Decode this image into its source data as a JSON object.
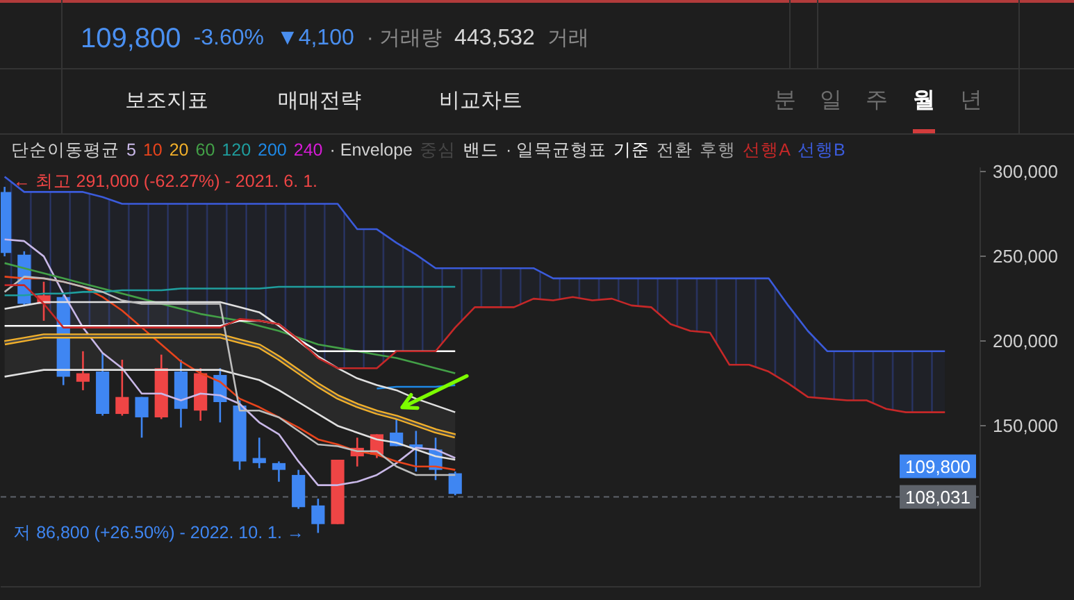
{
  "chart_data": {
    "type": "candlestick",
    "categories": [
      null,
      null,
      null,
      null,
      null,
      null,
      null,
      null,
      null,
      null,
      null,
      null,
      null,
      null,
      null,
      null,
      null,
      null,
      null,
      null,
      null,
      null,
      null,
      null,
      null,
      null,
      null,
      null,
      null,
      null,
      null,
      null,
      null,
      null,
      null,
      null,
      null,
      null,
      null,
      null,
      null,
      null,
      null,
      null,
      null,
      null,
      null,
      null,
      null
    ],
    "ohlc": [
      [
        288000,
        291000,
        250000,
        252000
      ],
      [
        251000,
        253000,
        221000,
        222000
      ],
      [
        222000,
        235000,
        212000,
        227000
      ],
      [
        226000,
        227000,
        174000,
        179000
      ],
      [
        176000,
        194000,
        171000,
        181000
      ],
      [
        182000,
        193000,
        156000,
        157000
      ],
      [
        157000,
        189000,
        156000,
        167000
      ],
      [
        167000,
        167000,
        143000,
        155000
      ],
      [
        155000,
        192000,
        154000,
        184000
      ],
      [
        182000,
        189000,
        149000,
        160000
      ],
      [
        159000,
        184000,
        153000,
        181000
      ],
      [
        180000,
        184000,
        152000,
        164000
      ],
      [
        162000,
        165000,
        124000,
        129000
      ],
      [
        131000,
        143000,
        125000,
        128000
      ],
      [
        128000,
        129000,
        117000,
        124000
      ],
      [
        121000,
        124000,
        101000,
        102000
      ],
      [
        103000,
        107000,
        86800,
        92000
      ],
      [
        92000,
        130000,
        92000,
        130000
      ],
      [
        132000,
        143000,
        126000,
        137000
      ],
      [
        133000,
        145000,
        131000,
        145000
      ],
      [
        146000,
        156000,
        138000,
        138000
      ],
      [
        139000,
        147000,
        123000,
        137000
      ],
      [
        136000,
        143000,
        118000,
        124000
      ],
      [
        122000,
        123000,
        109000,
        109800
      ],
      null,
      null,
      null,
      null,
      null,
      null,
      null,
      null,
      null,
      null,
      null,
      null,
      null,
      null,
      null,
      null,
      null,
      null,
      null,
      null,
      null,
      null,
      null,
      null,
      null
    ],
    "colors": [
      "#3f86f2",
      "#3f86f2",
      "#ef4545",
      "#3f86f2",
      "#ef4545",
      "#3f86f2",
      "#ef4545",
      "#3f86f2",
      "#ef4545",
      "#3f86f2",
      "#ef4545",
      "#3f86f2",
      "#3f86f2",
      "#3f86f2",
      "#3f86f2",
      "#3f86f2",
      "#3f86f2",
      "#ef4545",
      "#ef4545",
      "#ef4545",
      "#3f86f2",
      "#3f86f2",
      "#3f86f2",
      "#3f86f2",
      null,
      null,
      null,
      null,
      null,
      null,
      null,
      null,
      null,
      null,
      null,
      null,
      null,
      null,
      null,
      null,
      null,
      null,
      null,
      null,
      null,
      null,
      null,
      null,
      null
    ],
    "ylim": [
      55000,
      302500
    ],
    "yticks": [
      {
        "value": 150000,
        "label": "150,000"
      },
      {
        "value": 200000,
        "label": "200,000"
      },
      {
        "value": 250000,
        "label": "250,000"
      },
      {
        "value": 300000,
        "label": "300,000"
      }
    ],
    "tick_labels": "y",
    "series": [
      {
        "name": "5",
        "color": "#c9b8e8",
        "type": "line",
        "values": [
          260000,
          259000,
          250000,
          228000,
          208000,
          193000,
          184000,
          169000,
          169000,
          165000,
          169000,
          168000,
          163000,
          152000,
          145000,
          129000,
          115000,
          115000,
          117000,
          121000,
          128000,
          137000,
          136000,
          131000,
          null,
          null,
          null,
          null,
          null,
          null,
          null,
          null,
          null,
          null,
          null,
          null,
          null,
          null,
          null,
          null,
          null,
          null,
          null,
          null,
          null,
          null,
          null,
          null,
          null
        ]
      },
      {
        "name": "10",
        "color": "#e8441c",
        "type": "line",
        "values": [
          238000,
          237000,
          237000,
          235000,
          232000,
          226000,
          218000,
          208000,
          198000,
          188000,
          181000,
          176000,
          166000,
          161000,
          155000,
          149000,
          142000,
          139000,
          135000,
          133000,
          129000,
          126000,
          126000,
          124000,
          null,
          null,
          null,
          null,
          null,
          null,
          null,
          null,
          null,
          null,
          null,
          null,
          null,
          null,
          null,
          null,
          null,
          null,
          null,
          null,
          null,
          null,
          null,
          null,
          null
        ]
      },
      {
        "name": "20",
        "color": "#f2b02a",
        "type": "line",
        "values": [
          199000,
          201000,
          203000,
          203000,
          203000,
          203000,
          203000,
          203000,
          203000,
          203000,
          203000,
          203000,
          200000,
          197000,
          190000,
          182000,
          174000,
          167000,
          162000,
          158000,
          155000,
          151000,
          147000,
          144000,
          null,
          null,
          null,
          null,
          null,
          null,
          null,
          null,
          null,
          null,
          null,
          null,
          null,
          null,
          null,
          null,
          null,
          null,
          null,
          null,
          null,
          null,
          null,
          null,
          null
        ]
      },
      {
        "name": "60",
        "color": "#43a047",
        "type": "line",
        "values": [
          246000,
          243000,
          240000,
          237000,
          234000,
          231000,
          228000,
          225000,
          222000,
          219000,
          216000,
          214000,
          212000,
          209000,
          206000,
          202000,
          198000,
          196000,
          194000,
          192000,
          190000,
          187000,
          184000,
          181000,
          null,
          null,
          null,
          null,
          null,
          null,
          null,
          null,
          null,
          null,
          null,
          null,
          null,
          null,
          null,
          null,
          null,
          null,
          null,
          null,
          null,
          null,
          null,
          null,
          null
        ]
      },
      {
        "name": "120",
        "color": "#1f9e9e",
        "type": "line",
        "values": [
          227000,
          227000,
          228000,
          228000,
          229000,
          229000,
          230000,
          230000,
          230000,
          231000,
          231000,
          231000,
          231000,
          231000,
          232000,
          232000,
          232000,
          232000,
          232000,
          232000,
          232000,
          232000,
          232000,
          232000,
          null,
          null,
          null,
          null,
          null,
          null,
          null,
          null,
          null,
          null,
          null,
          null,
          null,
          null,
          null,
          null,
          null,
          null,
          null,
          null,
          null,
          null,
          null,
          null,
          null
        ]
      },
      {
        "name": "200",
        "color": "#1e88e5",
        "type": "line",
        "values": [
          null,
          null,
          null,
          null,
          null,
          null,
          null,
          null,
          null,
          null,
          null,
          null,
          null,
          null,
          null,
          null,
          null,
          null,
          null,
          172000,
          173000,
          173000,
          173000,
          174000,
          null,
          null,
          null,
          null,
          null,
          null,
          null,
          null,
          null,
          null,
          null,
          null,
          null,
          null,
          null,
          null,
          null,
          null,
          null,
          null,
          null,
          null,
          null,
          null,
          null
        ]
      },
      {
        "name": "240",
        "color": "#d81bd8",
        "type": "line",
        "values": [
          null,
          null,
          null,
          null,
          null,
          null,
          null,
          null,
          null,
          null,
          null,
          null,
          null,
          null,
          null,
          null,
          null,
          null,
          null,
          null,
          null,
          null,
          null,
          null,
          null,
          null,
          null,
          null,
          null,
          null,
          null,
          null,
          null,
          null,
          null,
          null,
          null,
          null,
          null,
          null,
          null,
          null,
          null,
          null,
          null,
          null,
          null,
          null,
          null
        ]
      },
      {
        "name": "중심",
        "color": "#474747",
        "type": "line",
        "values": [
          199000,
          201000,
          203000,
          203000,
          203000,
          203000,
          203000,
          203000,
          203000,
          203000,
          203000,
          203000,
          200000,
          197000,
          190000,
          182000,
          174000,
          167000,
          162000,
          158000,
          155000,
          151000,
          147000,
          144000,
          null,
          null,
          null,
          null,
          null,
          null,
          null,
          null,
          null,
          null,
          null,
          null,
          null,
          null,
          null,
          null,
          null,
          null,
          null,
          null,
          null,
          null,
          null,
          null,
          null
        ],
        "lower": [
          179000,
          181000,
          183000,
          183000,
          183000,
          183000,
          183000,
          183000,
          183000,
          183000,
          183000,
          183000,
          180000,
          177000,
          171000,
          164000,
          157000,
          150000,
          146000,
          142000,
          140000,
          136000,
          132000,
          130000,
          null,
          null,
          null,
          null,
          null,
          null,
          null,
          null,
          null,
          null,
          null,
          null,
          null,
          null,
          null,
          null,
          null,
          null,
          null,
          null,
          null,
          null,
          null,
          null,
          null
        ],
        "upper": [
          219000,
          221000,
          223000,
          223000,
          223000,
          223000,
          223000,
          223000,
          223000,
          223000,
          223000,
          223000,
          220000,
          217000,
          209000,
          200000,
          191000,
          184000,
          178000,
          174000,
          171000,
          166000,
          162000,
          158000,
          null,
          null,
          null,
          null,
          null,
          null,
          null,
          null,
          null,
          null,
          null,
          null,
          null,
          null,
          null,
          null,
          null,
          null,
          null,
          null,
          null,
          null,
          null,
          null,
          null
        ]
      },
      {
        "name": "밴드",
        "color": "#e0e0e0",
        "type": "line",
        "values": [
          219000,
          221000,
          223000,
          223000,
          223000,
          223000,
          223000,
          223000,
          223000,
          223000,
          223000,
          223000,
          220000,
          217000,
          209000,
          200000,
          191000,
          184000,
          178000,
          174000,
          171000,
          166000,
          162000,
          158000,
          null,
          null,
          null,
          null,
          null,
          null,
          null,
          null,
          null,
          null,
          null,
          null,
          null,
          null,
          null,
          null,
          null,
          null,
          null,
          null,
          null,
          null,
          null,
          null,
          null
        ]
      },
      {
        "color": "#e0e0e0",
        "type": "line",
        "values": [
          179000,
          181000,
          183000,
          183000,
          183000,
          183000,
          183000,
          183000,
          183000,
          183000,
          183000,
          183000,
          180000,
          177000,
          171000,
          164000,
          157000,
          150000,
          146000,
          142000,
          140000,
          136000,
          132000,
          130000,
          null,
          null,
          null,
          null,
          null,
          null,
          null,
          null,
          null,
          null,
          null,
          null,
          null,
          null,
          null,
          null,
          null,
          null,
          null,
          null,
          null,
          null,
          null,
          null,
          null
        ]
      },
      {
        "name": "기준",
        "color": "#ffffff",
        "type": "line",
        "values": [
          209000,
          209000,
          209000,
          209000,
          209000,
          209000,
          209000,
          209000,
          209000,
          209000,
          209000,
          209000,
          212000,
          212000,
          210000,
          201000,
          194000,
          194000,
          194000,
          194000,
          194000,
          194000,
          194000,
          194000,
          null,
          null,
          null,
          null,
          null,
          null,
          null,
          null,
          null,
          null,
          null,
          null,
          null,
          null,
          null,
          null,
          null,
          null,
          null,
          null,
          null,
          null,
          null,
          null,
          null
        ]
      },
      {
        "name": "전환",
        "color": "#bdbdbd",
        "type": "line",
        "values": [
          229000,
          238000,
          237000,
          235000,
          232000,
          229000,
          224000,
          222000,
          222000,
          222000,
          222000,
          222000,
          159000,
          159000,
          155000,
          147000,
          139000,
          138000,
          135000,
          135000,
          126000,
          121000,
          121000,
          121000,
          null,
          null,
          null,
          null,
          null,
          null,
          null,
          null,
          null,
          null,
          null,
          null,
          null,
          null,
          null,
          null,
          null,
          null,
          null,
          null,
          null,
          null,
          null,
          null,
          null
        ]
      },
      {
        "name": "후행",
        "color": "#a0a0a0",
        "type": "line",
        "values": [
          null,
          null,
          null,
          null,
          null,
          null,
          null,
          null,
          null,
          null,
          null,
          null,
          null,
          null,
          null,
          null,
          null,
          null,
          null,
          null,
          null,
          null,
          null,
          null,
          null,
          null,
          null,
          null,
          null,
          null,
          null,
          null,
          null,
          null,
          null,
          null,
          null,
          null,
          null,
          null,
          null,
          null,
          null,
          null,
          null,
          null,
          null,
          null,
          null
        ]
      },
      {
        "name": "선행A",
        "color": "#c62828",
        "type": "line",
        "values": [
          233000,
          233000,
          222000,
          208000,
          208000,
          208000,
          208000,
          208000,
          208000,
          208000,
          208000,
          208000,
          213000,
          212000,
          210000,
          201000,
          190000,
          184000,
          184000,
          184000,
          194000,
          194000,
          194000,
          208000,
          220000,
          220000,
          220000,
          225000,
          224000,
          226000,
          224000,
          225000,
          221000,
          220000,
          210000,
          206000,
          205000,
          186000,
          186000,
          182000,
          175000,
          167000,
          166000,
          165000,
          165000,
          160000,
          158000,
          158000,
          158000
        ]
      },
      {
        "name": "선행B",
        "color": "#3b5bdb",
        "type": "line",
        "values": [
          297000,
          288000,
          288000,
          288000,
          288000,
          285000,
          281000,
          281000,
          281000,
          281000,
          281000,
          281000,
          281000,
          281000,
          281000,
          281000,
          281000,
          281000,
          266000,
          266000,
          258000,
          251000,
          243000,
          243000,
          243000,
          243000,
          243000,
          243000,
          237000,
          237000,
          237000,
          237000,
          237000,
          237000,
          237000,
          237000,
          237000,
          237000,
          237000,
          237000,
          221000,
          206000,
          194000,
          194000,
          194000,
          194000,
          194000,
          194000,
          194000
        ],
        "lower": [
          233000,
          233000,
          222000,
          208000,
          208000,
          208000,
          208000,
          208000,
          208000,
          208000,
          208000,
          208000,
          213000,
          212000,
          210000,
          201000,
          190000,
          184000,
          184000,
          184000,
          194000,
          194000,
          194000,
          208000,
          220000,
          220000,
          220000,
          225000,
          224000,
          226000,
          224000,
          225000,
          221000,
          220000,
          210000,
          206000,
          205000,
          186000,
          186000,
          182000,
          175000,
          167000,
          166000,
          165000,
          165000,
          160000,
          158000,
          158000,
          158000
        ],
        "upper": [
          297000,
          288000,
          288000,
          288000,
          288000,
          285000,
          281000,
          281000,
          281000,
          281000,
          281000,
          281000,
          281000,
          281000,
          281000,
          281000,
          281000,
          281000,
          266000,
          266000,
          258000,
          251000,
          243000,
          243000,
          243000,
          243000,
          243000,
          243000,
          237000,
          237000,
          237000,
          237000,
          237000,
          237000,
          237000,
          237000,
          237000,
          237000,
          237000,
          237000,
          221000,
          206000,
          194000,
          194000,
          194000,
          194000,
          194000,
          194000,
          194000
        ]
      }
    ],
    "ref_lines": [
      {
        "axis": "y",
        "value": 108031,
        "label": "108,031",
        "color": "#5e636b",
        "line_style": "dashed"
      }
    ],
    "annotations": [
      "단순이동평균",
      "· Envelope",
      "· 일목균형표",
      "109,800",
      "-3.60%",
      "▼4,100",
      "· 거래량",
      "443,532",
      "거래",
      "보조지표",
      "매매전략",
      "비교차트",
      "분",
      "일",
      "주",
      "월",
      "년",
      "← 최고 291,000 (-62.27%) - 2021. 6. 1.",
      "저 86,800 (+26.50%) - 2022. 10. 1. →",
      "109,800"
    ]
  }
}
